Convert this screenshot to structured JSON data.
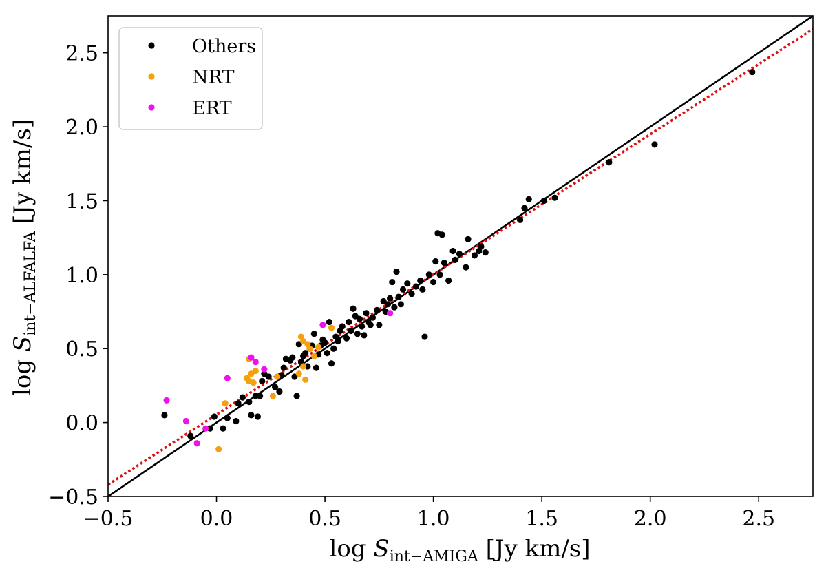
{
  "chart_data": {
    "type": "scatter",
    "title": "",
    "xlabel": {
      "prefix": "log ",
      "var": "S",
      "sub": "int−AMIGA",
      "unit": " [Jy km/s]"
    },
    "ylabel": {
      "prefix": "log ",
      "var": "S",
      "sub": "int−ALFALFA",
      "unit": " [Jy km/s]"
    },
    "xlim": [
      -0.5,
      2.75
    ],
    "ylim": [
      -0.5,
      2.75
    ],
    "xticks": [
      -0.5,
      0.0,
      0.5,
      1.0,
      1.5,
      2.0,
      2.5
    ],
    "yticks": [
      -0.5,
      0.0,
      0.5,
      1.0,
      1.5,
      2.0,
      2.5
    ],
    "xtick_labels": [
      "−0.5",
      "0.0",
      "0.5",
      "1.0",
      "1.5",
      "2.0",
      "2.5"
    ],
    "ytick_labels": [
      "−0.5",
      "0.0",
      "0.5",
      "1.0",
      "1.5",
      "2.0",
      "2.5"
    ],
    "grid": false,
    "legend_position": "top-left",
    "series": [
      {
        "name": "Others",
        "color": "#000000",
        "points": [
          [
            -0.24,
            0.05
          ],
          [
            -0.12,
            -0.09
          ],
          [
            -0.03,
            -0.04
          ],
          [
            -0.01,
            0.04
          ],
          [
            0.03,
            -0.04
          ],
          [
            0.05,
            0.03
          ],
          [
            0.09,
            0.01
          ],
          [
            0.1,
            0.13
          ],
          [
            0.12,
            0.17
          ],
          [
            0.15,
            0.14
          ],
          [
            0.16,
            0.05
          ],
          [
            0.18,
            0.18
          ],
          [
            0.19,
            0.04
          ],
          [
            0.2,
            0.18
          ],
          [
            0.21,
            0.28
          ],
          [
            0.22,
            0.33
          ],
          [
            0.24,
            0.31
          ],
          [
            0.27,
            0.24
          ],
          [
            0.29,
            0.21
          ],
          [
            0.3,
            0.32
          ],
          [
            0.31,
            0.37
          ],
          [
            0.32,
            0.43
          ],
          [
            0.34,
            0.42
          ],
          [
            0.35,
            0.44
          ],
          [
            0.36,
            0.31
          ],
          [
            0.37,
            0.18
          ],
          [
            0.38,
            0.53
          ],
          [
            0.39,
            0.41
          ],
          [
            0.4,
            0.45
          ],
          [
            0.41,
            0.47
          ],
          [
            0.42,
            0.38
          ],
          [
            0.43,
            0.5
          ],
          [
            0.44,
            0.52
          ],
          [
            0.45,
            0.6
          ],
          [
            0.46,
            0.37
          ],
          [
            0.47,
            0.46
          ],
          [
            0.48,
            0.52
          ],
          [
            0.49,
            0.56
          ],
          [
            0.5,
            0.54
          ],
          [
            0.51,
            0.47
          ],
          [
            0.52,
            0.68
          ],
          [
            0.53,
            0.4
          ],
          [
            0.54,
            0.5
          ],
          [
            0.55,
            0.58
          ],
          [
            0.56,
            0.55
          ],
          [
            0.57,
            0.62
          ],
          [
            0.58,
            0.65
          ],
          [
            0.6,
            0.57
          ],
          [
            0.61,
            0.68
          ],
          [
            0.62,
            0.62
          ],
          [
            0.63,
            0.77
          ],
          [
            0.64,
            0.72
          ],
          [
            0.65,
            0.6
          ],
          [
            0.66,
            0.7
          ],
          [
            0.67,
            0.65
          ],
          [
            0.68,
            0.59
          ],
          [
            0.69,
            0.74
          ],
          [
            0.7,
            0.68
          ],
          [
            0.71,
            0.66
          ],
          [
            0.72,
            0.71
          ],
          [
            0.74,
            0.76
          ],
          [
            0.75,
            0.66
          ],
          [
            0.77,
            0.82
          ],
          [
            0.78,
            0.75
          ],
          [
            0.79,
            0.8
          ],
          [
            0.8,
            0.84
          ],
          [
            0.81,
            0.95
          ],
          [
            0.82,
            0.78
          ],
          [
            0.83,
            1.02
          ],
          [
            0.84,
            0.85
          ],
          [
            0.85,
            0.8
          ],
          [
            0.86,
            0.9
          ],
          [
            0.88,
            0.94
          ],
          [
            0.9,
            0.87
          ],
          [
            0.92,
            0.92
          ],
          [
            0.94,
            0.96
          ],
          [
            0.95,
            0.9
          ],
          [
            0.96,
            0.58
          ],
          [
            0.98,
            1.0
          ],
          [
            1.0,
            0.95
          ],
          [
            1.01,
            1.09
          ],
          [
            1.02,
            1.28
          ],
          [
            1.03,
            1.0
          ],
          [
            1.04,
            1.27
          ],
          [
            1.05,
            1.08
          ],
          [
            1.07,
            0.96
          ],
          [
            1.09,
            1.16
          ],
          [
            1.1,
            1.1
          ],
          [
            1.12,
            1.14
          ],
          [
            1.15,
            1.05
          ],
          [
            1.16,
            1.24
          ],
          [
            1.19,
            1.13
          ],
          [
            1.21,
            1.16
          ],
          [
            1.22,
            1.19
          ],
          [
            1.24,
            1.15
          ],
          [
            1.4,
            1.37
          ],
          [
            1.42,
            1.45
          ],
          [
            1.44,
            1.51
          ],
          [
            1.51,
            1.5
          ],
          [
            1.56,
            1.52
          ],
          [
            1.81,
            1.76
          ],
          [
            2.02,
            1.88
          ],
          [
            2.47,
            2.37
          ]
        ]
      },
      {
        "name": "NRT",
        "color": "#f5a00f",
        "points": [
          [
            0.01,
            -0.18
          ],
          [
            0.04,
            0.13
          ],
          [
            0.14,
            0.3
          ],
          [
            0.15,
            0.43
          ],
          [
            0.15,
            0.28
          ],
          [
            0.16,
            0.33
          ],
          [
            0.17,
            0.27
          ],
          [
            0.18,
            0.35
          ],
          [
            0.26,
            0.18
          ],
          [
            0.28,
            0.31
          ],
          [
            0.38,
            0.33
          ],
          [
            0.39,
            0.58
          ],
          [
            0.4,
            0.55
          ],
          [
            0.4,
            0.38
          ],
          [
            0.41,
            0.29
          ],
          [
            0.42,
            0.53
          ],
          [
            0.43,
            0.5
          ],
          [
            0.45,
            0.45
          ],
          [
            0.47,
            0.51
          ],
          [
            0.53,
            0.64
          ]
        ]
      },
      {
        "name": "ERT",
        "color": "#ee11ee",
        "points": [
          [
            -0.23,
            0.15
          ],
          [
            -0.14,
            0.01
          ],
          [
            -0.09,
            -0.14
          ],
          [
            -0.05,
            -0.04
          ],
          [
            0.05,
            0.3
          ],
          [
            0.16,
            0.44
          ],
          [
            0.18,
            0.41
          ],
          [
            0.22,
            0.36
          ],
          [
            0.49,
            0.66
          ],
          [
            0.8,
            0.74
          ]
        ]
      }
    ],
    "lines": [
      {
        "name": "one-to-one",
        "style": "solid",
        "color": "#000000",
        "x": [
          -0.5,
          2.75
        ],
        "y": [
          -0.5,
          2.75
        ]
      },
      {
        "name": "fit",
        "style": "dotted",
        "color": "#dd1111",
        "x": [
          -0.5,
          2.75
        ],
        "y": [
          -0.42,
          2.66
        ]
      }
    ]
  }
}
